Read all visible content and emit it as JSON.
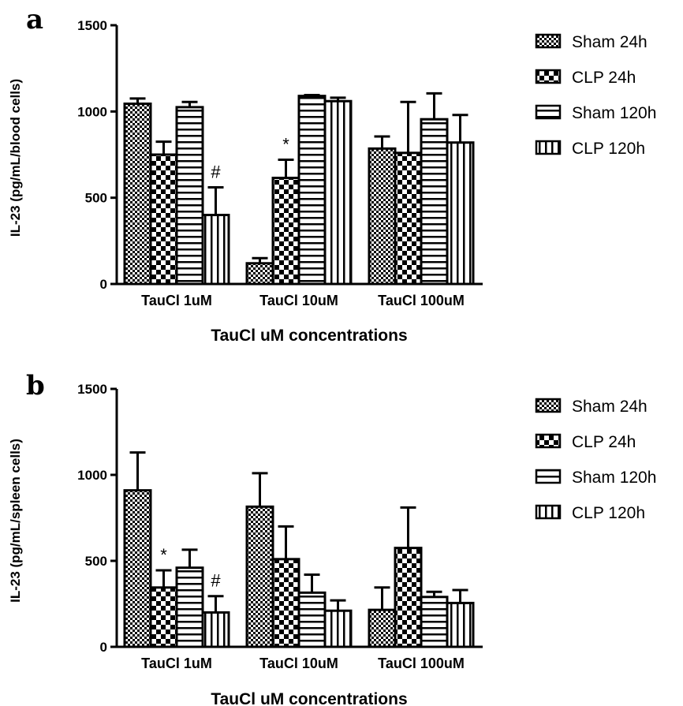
{
  "chart_data": [
    {
      "type": "bar",
      "panel_label": "a",
      "ylabel": "IL-23 (pg/mL/blood cells)",
      "xlabel": "TauCl uM concentrations",
      "ylim": [
        0,
        1500
      ],
      "yticks": [
        0,
        500,
        1000,
        1500
      ],
      "categories": [
        "TauCl 1uM",
        "TauCl 10uM",
        "TauCl 100uM"
      ],
      "legend_position": "right",
      "grid": false,
      "series": [
        {
          "name": "Sham 24h",
          "pattern": "checker-fine",
          "values": [
            1045,
            120,
            785
          ],
          "errors": [
            30,
            30,
            70
          ]
        },
        {
          "name": "CLP 24h",
          "pattern": "checker-bold",
          "values": [
            750,
            615,
            760
          ],
          "errors": [
            75,
            105,
            295
          ]
        },
        {
          "name": "Sham 120h",
          "pattern": "horizontal-lines",
          "values": [
            1025,
            1090,
            955
          ],
          "errors": [
            30,
            5,
            150
          ]
        },
        {
          "name": "CLP 120h",
          "pattern": "vertical-lines",
          "values": [
            400,
            1060,
            820
          ],
          "errors": [
            160,
            20,
            160
          ]
        }
      ],
      "annotations": [
        {
          "text": "#",
          "series": 3,
          "category": 0
        },
        {
          "text": "*",
          "series": 1,
          "category": 1
        }
      ]
    },
    {
      "type": "bar",
      "panel_label": "b",
      "ylabel": "IL-23 (pg/mL/spleen cells)",
      "xlabel": "TauCl uM concentrations",
      "ylim": [
        0,
        1500
      ],
      "yticks": [
        0,
        500,
        1000,
        1500
      ],
      "categories": [
        "TauCl 1uM",
        "TauCl 10uM",
        "TauCl 100uM"
      ],
      "legend_position": "right",
      "grid": false,
      "series": [
        {
          "name": "Sham 24h",
          "pattern": "checker-fine",
          "values": [
            910,
            815,
            215
          ],
          "errors": [
            220,
            195,
            130
          ]
        },
        {
          "name": "CLP 24h",
          "pattern": "checker-bold",
          "values": [
            345,
            510,
            575
          ],
          "errors": [
            100,
            190,
            235
          ]
        },
        {
          "name": "Sham 120h",
          "pattern": "horizontal-lines",
          "values": [
            460,
            315,
            290
          ],
          "errors": [
            105,
            105,
            30
          ]
        },
        {
          "name": "CLP 120h",
          "pattern": "vertical-lines",
          "values": [
            200,
            210,
            255
          ],
          "errors": [
            95,
            60,
            75
          ]
        }
      ],
      "annotations": [
        {
          "text": "*",
          "series": 1,
          "category": 0
        },
        {
          "text": "#",
          "series": 3,
          "category": 0
        }
      ]
    }
  ]
}
